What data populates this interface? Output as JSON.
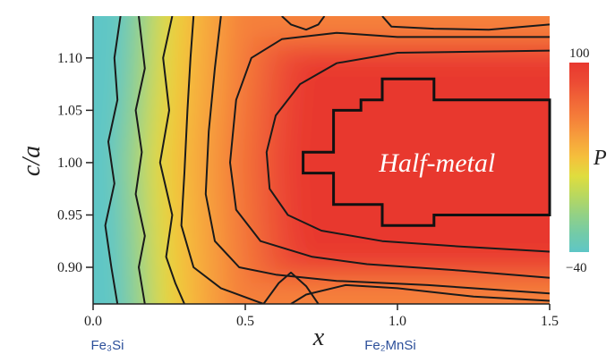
{
  "chart_data": {
    "type": "heatmap",
    "title": "",
    "xlabel": "x",
    "ylabel": "c/a",
    "xlim": [
      0.0,
      1.5
    ],
    "ylim": [
      0.865,
      1.14
    ],
    "x_ticks": [
      "0.0",
      "0.5",
      "1.0",
      "1.5"
    ],
    "y_ticks": [
      "0.90",
      "0.95",
      "1.00",
      "1.05",
      "1.10"
    ],
    "x_compound_labels": [
      {
        "x": 0.0,
        "name": "Fe₃Si"
      },
      {
        "x": 1.0,
        "name": "Fe₂MnSi"
      }
    ],
    "colorbar": {
      "label": "P",
      "min": -40,
      "max": 100,
      "min_label": "−40",
      "max_label": "100",
      "colors": [
        "#5ec6c6",
        "#74cba7",
        "#94d184",
        "#b9d85e",
        "#dfdd3e",
        "#f5c03c",
        "#f6a13c",
        "#f5813a",
        "#f16637",
        "#ec4a34",
        "#e8382f"
      ]
    },
    "annotation": {
      "text": "Half-metal",
      "x": 1.13,
      "y": 1.0
    },
    "half_metal_boundary": [
      [
        0.69,
        0.99
      ],
      [
        0.69,
        1.01
      ],
      [
        0.79,
        1.01
      ],
      [
        0.79,
        1.05
      ],
      [
        0.88,
        1.05
      ],
      [
        0.88,
        1.06
      ],
      [
        0.95,
        1.06
      ],
      [
        0.95,
        1.08
      ],
      [
        1.12,
        1.08
      ],
      [
        1.12,
        1.06
      ],
      [
        1.5,
        1.06
      ],
      [
        1.5,
        0.95
      ],
      [
        1.12,
        0.95
      ],
      [
        1.12,
        0.94
      ],
      [
        0.95,
        0.94
      ],
      [
        0.95,
        0.96
      ],
      [
        0.79,
        0.96
      ],
      [
        0.79,
        0.99
      ]
    ],
    "contours": [
      [
        [
          0.08,
          0.865
        ],
        [
          0.06,
          0.9
        ],
        [
          0.04,
          0.94
        ],
        [
          0.07,
          0.98
        ],
        [
          0.05,
          1.02
        ],
        [
          0.08,
          1.06
        ],
        [
          0.07,
          1.1
        ],
        [
          0.09,
          1.14
        ]
      ],
      [
        [
          0.17,
          0.865
        ],
        [
          0.15,
          0.9
        ],
        [
          0.17,
          0.93
        ],
        [
          0.14,
          0.97
        ],
        [
          0.16,
          1.01
        ],
        [
          0.14,
          1.05
        ],
        [
          0.17,
          1.09
        ],
        [
          0.15,
          1.14
        ]
      ],
      [
        [
          0.3,
          0.865
        ],
        [
          0.27,
          0.885
        ],
        [
          0.24,
          0.91
        ],
        [
          0.26,
          0.95
        ],
        [
          0.22,
          1.0
        ],
        [
          0.25,
          1.05
        ],
        [
          0.23,
          1.1
        ],
        [
          0.26,
          1.14
        ]
      ],
      [
        [
          0.56,
          0.865
        ],
        [
          0.42,
          0.88
        ],
        [
          0.33,
          0.9
        ],
        [
          0.29,
          0.94
        ],
        [
          0.3,
          0.99
        ],
        [
          0.31,
          1.05
        ],
        [
          0.32,
          1.1
        ],
        [
          0.33,
          1.14
        ]
      ],
      [
        [
          1.5,
          0.875
        ],
        [
          1.1,
          0.883
        ],
        [
          0.8,
          0.887
        ],
        [
          0.6,
          0.893
        ],
        [
          0.48,
          0.9
        ],
        [
          0.4,
          0.925
        ],
        [
          0.37,
          0.97
        ],
        [
          0.38,
          1.03
        ],
        [
          0.4,
          1.09
        ],
        [
          0.42,
          1.14
        ]
      ],
      [
        [
          1.5,
          0.89
        ],
        [
          1.2,
          0.897
        ],
        [
          0.9,
          0.903
        ],
        [
          0.72,
          0.91
        ],
        [
          0.55,
          0.925
        ],
        [
          0.47,
          0.955
        ],
        [
          0.45,
          1.0
        ],
        [
          0.47,
          1.06
        ],
        [
          0.52,
          1.1
        ],
        [
          0.62,
          1.118
        ],
        [
          0.8,
          1.124
        ],
        [
          1.0,
          1.12
        ],
        [
          1.5,
          1.12
        ]
      ],
      [
        [
          1.5,
          0.915
        ],
        [
          1.2,
          0.92
        ],
        [
          0.95,
          0.925
        ],
        [
          0.75,
          0.935
        ],
        [
          0.64,
          0.95
        ],
        [
          0.58,
          0.975
        ],
        [
          0.57,
          1.01
        ],
        [
          0.6,
          1.045
        ],
        [
          0.68,
          1.075
        ],
        [
          0.8,
          1.095
        ],
        [
          1.0,
          1.105
        ],
        [
          1.5,
          1.107
        ]
      ],
      [
        [
          0.95,
          1.14
        ],
        [
          0.98,
          1.13
        ],
        [
          1.12,
          1.128
        ],
        [
          1.3,
          1.127
        ],
        [
          1.5,
          1.132
        ]
      ],
      [
        [
          0.62,
          1.14
        ],
        [
          0.65,
          1.132
        ],
        [
          0.7,
          1.127
        ],
        [
          0.74,
          1.132
        ],
        [
          0.76,
          1.14
        ]
      ],
      [
        [
          1.5,
          0.868
        ],
        [
          1.25,
          0.872
        ],
        [
          1.0,
          0.88
        ],
        [
          0.83,
          0.883
        ],
        [
          0.7,
          0.874
        ],
        [
          0.65,
          0.865
        ]
      ],
      [
        [
          0.56,
          0.865
        ],
        [
          0.61,
          0.885
        ],
        [
          0.65,
          0.895
        ],
        [
          0.7,
          0.882
        ],
        [
          0.74,
          0.865
        ]
      ]
    ]
  }
}
